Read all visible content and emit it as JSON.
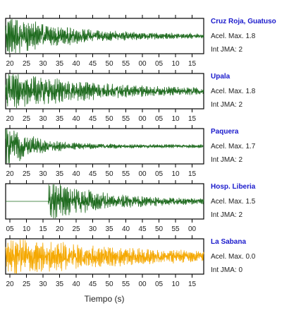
{
  "chart_data": {
    "type": "line",
    "xlabel": "Tiempo (s)",
    "colors": {
      "default_trace": "#1f6b1f",
      "highlight_trace": "#f5a800",
      "station_name": "#1a1acc"
    },
    "panels": [
      {
        "station": "Cruz Roja, Guatuso",
        "accel": "Acel. Max. 1.8",
        "jma": "Int JMA: 2",
        "tick_labels": [
          "20",
          "25",
          "30",
          "35",
          "40",
          "45",
          "50",
          "55",
          "00",
          "05",
          "10",
          "15"
        ],
        "onset_fraction": 0.0,
        "peak_amplitude": 0.9,
        "decay": 3.2,
        "trace_color": "#1f6b1f"
      },
      {
        "station": "Upala",
        "accel": "Acel. Max. 1.8",
        "jma": "Int JMA: 2",
        "tick_labels": [
          "20",
          "25",
          "30",
          "35",
          "40",
          "45",
          "50",
          "55",
          "00",
          "05",
          "10",
          "15"
        ],
        "onset_fraction": 0.0,
        "peak_amplitude": 0.9,
        "decay": 2.4,
        "trace_color": "#1f6b1f"
      },
      {
        "station": "Paquera",
        "accel": "Acel. Max. 1.7",
        "jma": "Int JMA: 2",
        "tick_labels": [
          "20",
          "25",
          "30",
          "35",
          "40",
          "45",
          "50",
          "55",
          "00",
          "05",
          "10",
          "15"
        ],
        "onset_fraction": 0.0,
        "peak_amplitude": 0.9,
        "decay": 6.5,
        "trace_color": "#1f6b1f"
      },
      {
        "station": "Hosp. Liberia",
        "accel": "Acel. Max. 1.5",
        "jma": "Int JMA: 2",
        "tick_labels": [
          "05",
          "10",
          "15",
          "20",
          "25",
          "30",
          "35",
          "40",
          "45",
          "50",
          "55",
          "00"
        ],
        "onset_fraction": 0.215,
        "peak_amplitude": 0.9,
        "decay": 3.5,
        "trace_color": "#1f6b1f"
      },
      {
        "station": "La Sabana",
        "accel": "Acel. Max. 0.0",
        "jma": "Int JMA: 0",
        "tick_labels": [
          "20",
          "25",
          "30",
          "35",
          "40",
          "45",
          "50",
          "55",
          "00",
          "05",
          "10",
          "15"
        ],
        "onset_fraction": 0.0,
        "peak_amplitude": 0.9,
        "decay": 1.6,
        "trace_color": "#f5a800"
      }
    ]
  }
}
